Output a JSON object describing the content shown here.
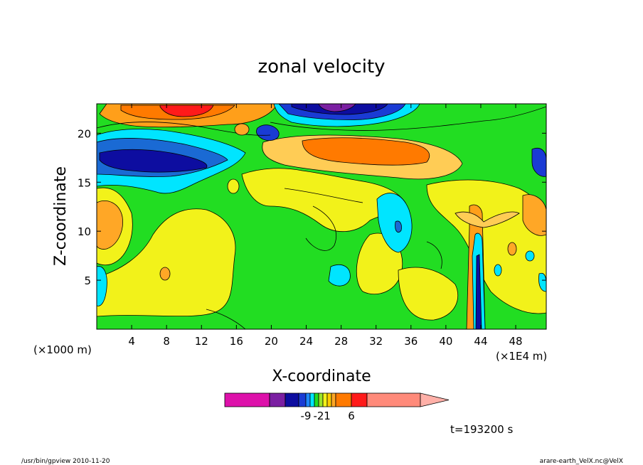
{
  "chart_data": {
    "type": "heatmap",
    "title": "zonal velocity",
    "xlabel": "X-coordinate",
    "ylabel": "Z-coordinate",
    "x_unit_left": "(×1000 m)",
    "x_unit_right": "(×1E4 m)",
    "x_range": [
      0,
      51.5
    ],
    "y_range": [
      0,
      23
    ],
    "x_ticks": [
      "4",
      "8",
      "12",
      "16",
      "20",
      "24",
      "28",
      "32",
      "36",
      "40",
      "44",
      "48"
    ],
    "y_ticks": [
      "5",
      "10",
      "15",
      "20"
    ],
    "x_tick_values": [
      4,
      8,
      12,
      16,
      20,
      24,
      28,
      32,
      36,
      40,
      44,
      48
    ],
    "y_tick_values": [
      5,
      10,
      15,
      20
    ],
    "time_label": "t=193200 s",
    "colorbar": {
      "colors": [
        "#dd11aa",
        "#7b1fa2",
        "#0d0da0",
        "#1a3bd4",
        "#1e88ff",
        "#00e5ff",
        "#22dd22",
        "#9be32a",
        "#f2f21a",
        "#ffcc00",
        "#ffa726",
        "#ff7a00",
        "#ff1a1a",
        "#ff8a7a",
        "#ffb0a8"
      ],
      "labels": [
        "-9",
        "-2",
        "1",
        "6"
      ],
      "label_positions": [
        4,
        7,
        9,
        12
      ]
    },
    "features": [
      {
        "x": 10.5,
        "z": 21.8,
        "value": 6
      },
      {
        "x": 6,
        "z": 17.5,
        "value": -5
      },
      {
        "x": 27.5,
        "z": 22,
        "value": -9
      },
      {
        "x": 31,
        "z": 18.3,
        "value": 4
      },
      {
        "x": 2,
        "z": 10.5,
        "value": 2
      },
      {
        "x": 34.2,
        "z": 11,
        "value": -2
      },
      {
        "x": 43.5,
        "z": 5,
        "value": -4
      }
    ]
  },
  "footer": {
    "left": "/usr/bin/gpview   2010-11-20",
    "right": "arare-earth_VelX.nc@VelX"
  }
}
